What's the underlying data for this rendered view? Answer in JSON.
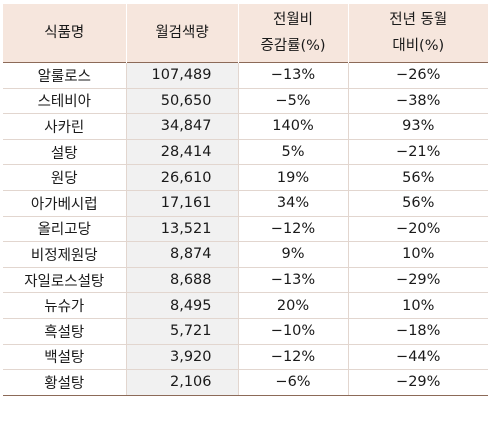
{
  "table": {
    "headers": {
      "name": "식품명",
      "volume": "월검색량",
      "mom_line1": "전월비",
      "mom_line2": "증감률(%)",
      "yoy_line1": "전년 동월",
      "yoy_line2": "대비(%)"
    },
    "rows": [
      {
        "name": "알룰로스",
        "volume": "107,489",
        "mom": "−13%",
        "yoy": "−26%"
      },
      {
        "name": "스테비아",
        "volume": "50,650",
        "mom": "−5%",
        "yoy": "−38%"
      },
      {
        "name": "사카린",
        "volume": "34,847",
        "mom": "140%",
        "yoy": "93%"
      },
      {
        "name": "설탕",
        "volume": "28,414",
        "mom": "5%",
        "yoy": "−21%"
      },
      {
        "name": "원당",
        "volume": "26,610",
        "mom": "19%",
        "yoy": "56%"
      },
      {
        "name": "아가베시럽",
        "volume": "17,161",
        "mom": "34%",
        "yoy": "56%"
      },
      {
        "name": "올리고당",
        "volume": "13,521",
        "mom": "−12%",
        "yoy": "−20%"
      },
      {
        "name": "비정제원당",
        "volume": "8,874",
        "mom": "9%",
        "yoy": "10%"
      },
      {
        "name": "자일로스설탕",
        "volume": "8,688",
        "mom": "−13%",
        "yoy": "−29%"
      },
      {
        "name": "뉴슈가",
        "volume": "8,495",
        "mom": "20%",
        "yoy": "10%"
      },
      {
        "name": "흑설탕",
        "volume": "5,721",
        "mom": "−10%",
        "yoy": "−18%"
      },
      {
        "name": "백설탕",
        "volume": "3,920",
        "mom": "−12%",
        "yoy": "−44%"
      },
      {
        "name": "황설탕",
        "volume": "2,106",
        "mom": "−6%",
        "yoy": "−29%"
      }
    ]
  },
  "colors": {
    "header_bg": "#f6e6dd",
    "volume_column_bg": "#f1f1f1",
    "rule": "#8c6a58"
  }
}
